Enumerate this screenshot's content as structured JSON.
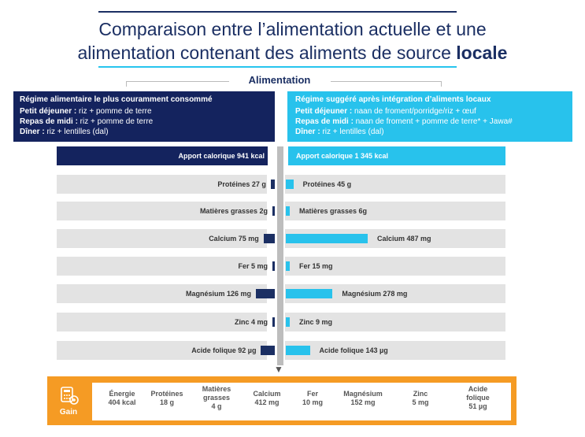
{
  "title": {
    "line1": "Comparaison entre l’alimentation actuelle et une",
    "line2_plain": "alimentation contenant des aliments de source ",
    "line2_bold": "locale"
  },
  "section_label": "Alimentation",
  "left_box": {
    "header": "Régime alimentaire le plus couramment consommé",
    "rows": [
      {
        "key": "Petit déjeuner :",
        "value": " riz + pomme de terre"
      },
      {
        "key": "Repas de midi :",
        "value": " riz + pomme de terre"
      },
      {
        "key": "Dîner :",
        "value": " riz + lentilles (dal)"
      }
    ]
  },
  "right_box": {
    "header": "Régime suggéré après intégration d’aliments locaux",
    "rows": [
      {
        "key": "Petit déjeuner :",
        "value": " naan de froment/porridge/riz + œuf"
      },
      {
        "key": "Repas de midi :",
        "value": " naan de froment + pomme de terre* + Jawa#"
      },
      {
        "key": "Dîner :",
        "value": " riz + lentilles (dal)"
      }
    ]
  },
  "kcal": {
    "left": "Apport calorique 941 kcal",
    "right": "Apport calorique 1 345 kcal"
  },
  "colors": {
    "navy": "#14235e",
    "cyan": "#28c2ec",
    "orange": "#f59b24",
    "gray": "#e3e3e3"
  },
  "chart_data": {
    "type": "bar",
    "categories": [
      "Protéines",
      "Matières grasses",
      "Calcium",
      "Fer",
      "Magnésium",
      "Zinc",
      "Acide folique"
    ],
    "series": [
      {
        "values": [
          27,
          2,
          75,
          5,
          126,
          4,
          92
        ]
      },
      {
        "values": [
          45,
          6,
          487,
          15,
          278,
          9,
          143
        ]
      }
    ],
    "units": [
      "g",
      "g",
      "mg",
      "mg",
      "mg",
      "mg",
      "µg"
    ],
    "left_labels": [
      "Protéines 27 g",
      "Matières grasses 2g",
      "Calcium 75 mg",
      "Fer 5 mg",
      "Magnésium 126 mg",
      "Zinc 4 mg",
      "Acide folique 92 µg"
    ],
    "right_labels": [
      "Protéines 45 g",
      "Matières grasses 6g",
      "Calcium 487 mg",
      "Fer 15 mg",
      "Magnésium 278 mg",
      "Zinc 9 mg",
      "Acide folique 143 µg"
    ]
  },
  "gain": {
    "label": "Gain",
    "icon": "calculator-icon",
    "items": [
      {
        "lines": [
          "Énergie",
          "404 kcal"
        ]
      },
      {
        "lines": [
          "Protéines",
          "18 g"
        ]
      },
      {
        "lines": [
          "Matières",
          "grasses",
          "4 g"
        ]
      },
      {
        "lines": [
          "Calcium",
          "412 mg"
        ]
      },
      {
        "lines": [
          "Fer",
          "10 mg"
        ]
      },
      {
        "lines": [
          "Magnésium",
          "152 mg"
        ]
      },
      {
        "lines": [
          "Zinc",
          "5 mg"
        ]
      },
      {
        "lines": [
          "Acide",
          "folique",
          "51 µg"
        ]
      }
    ]
  }
}
